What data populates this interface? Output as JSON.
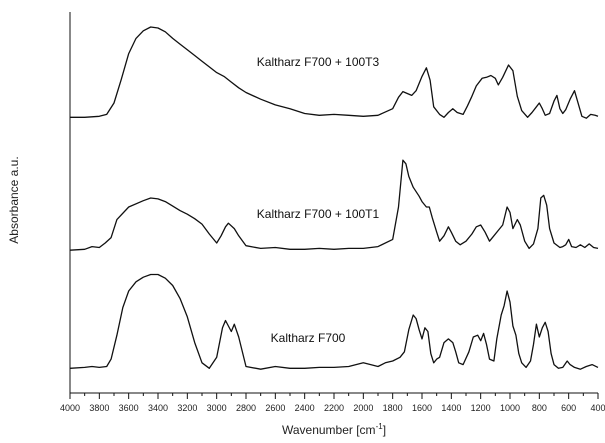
{
  "chart_data": {
    "type": "line",
    "xlabel": "Wavenumber [cm",
    "xlabel_sup": "-1",
    "xlabel_end": "]",
    "ylabel": "Absorbance a.u.",
    "xlim": [
      4000,
      400
    ],
    "x_reversed": true,
    "x_ticks": [
      4000,
      3800,
      3600,
      3400,
      3200,
      3000,
      2800,
      2600,
      2400,
      2200,
      2000,
      1800,
      1600,
      1400,
      1200,
      1000,
      800,
      600,
      400
    ],
    "grid": false,
    "legend": "none",
    "series": [
      {
        "name": "Kaltharz F700 + 100T3",
        "offset": 2,
        "points": [
          [
            4000,
            0.05
          ],
          [
            3900,
            0.05
          ],
          [
            3800,
            0.06
          ],
          [
            3750,
            0.08
          ],
          [
            3700,
            0.2
          ],
          [
            3650,
            0.45
          ],
          [
            3600,
            0.72
          ],
          [
            3550,
            0.88
          ],
          [
            3500,
            0.96
          ],
          [
            3450,
            1.0
          ],
          [
            3400,
            0.99
          ],
          [
            3350,
            0.95
          ],
          [
            3300,
            0.88
          ],
          [
            3250,
            0.82
          ],
          [
            3200,
            0.76
          ],
          [
            3150,
            0.7
          ],
          [
            3100,
            0.64
          ],
          [
            3050,
            0.58
          ],
          [
            3000,
            0.52
          ],
          [
            2950,
            0.48
          ],
          [
            2900,
            0.42
          ],
          [
            2850,
            0.36
          ],
          [
            2800,
            0.31
          ],
          [
            2700,
            0.24
          ],
          [
            2600,
            0.18
          ],
          [
            2500,
            0.14
          ],
          [
            2400,
            0.09
          ],
          [
            2300,
            0.07
          ],
          [
            2200,
            0.08
          ],
          [
            2100,
            0.07
          ],
          [
            2000,
            0.06
          ],
          [
            1900,
            0.07
          ],
          [
            1800,
            0.14
          ],
          [
            1760,
            0.26
          ],
          [
            1730,
            0.32
          ],
          [
            1700,
            0.3
          ],
          [
            1670,
            0.28
          ],
          [
            1640,
            0.33
          ],
          [
            1600,
            0.48
          ],
          [
            1570,
            0.57
          ],
          [
            1545,
            0.44
          ],
          [
            1520,
            0.16
          ],
          [
            1480,
            0.08
          ],
          [
            1450,
            0.05
          ],
          [
            1420,
            0.1
          ],
          [
            1390,
            0.14
          ],
          [
            1360,
            0.1
          ],
          [
            1320,
            0.08
          ],
          [
            1290,
            0.17
          ],
          [
            1260,
            0.27
          ],
          [
            1230,
            0.38
          ],
          [
            1190,
            0.46
          ],
          [
            1160,
            0.47
          ],
          [
            1130,
            0.49
          ],
          [
            1100,
            0.46
          ],
          [
            1080,
            0.39
          ],
          [
            1050,
            0.47
          ],
          [
            1010,
            0.6
          ],
          [
            980,
            0.54
          ],
          [
            950,
            0.27
          ],
          [
            920,
            0.12
          ],
          [
            880,
            0.05
          ],
          [
            850,
            0.1
          ],
          [
            820,
            0.16
          ],
          [
            800,
            0.2
          ],
          [
            780,
            0.14
          ],
          [
            760,
            0.07
          ],
          [
            730,
            0.09
          ],
          [
            700,
            0.22
          ],
          [
            680,
            0.28
          ],
          [
            660,
            0.14
          ],
          [
            640,
            0.09
          ],
          [
            620,
            0.13
          ],
          [
            590,
            0.24
          ],
          [
            560,
            0.33
          ],
          [
            540,
            0.22
          ],
          [
            510,
            0.06
          ],
          [
            480,
            0.04
          ],
          [
            450,
            0.08
          ],
          [
            420,
            0.07
          ],
          [
            400,
            0.06
          ]
        ]
      },
      {
        "name": "Kaltharz F700 + 100T1",
        "offset": 1,
        "points": [
          [
            4000,
            0.02
          ],
          [
            3900,
            0.03
          ],
          [
            3850,
            0.06
          ],
          [
            3800,
            0.05
          ],
          [
            3760,
            0.1
          ],
          [
            3720,
            0.16
          ],
          [
            3680,
            0.36
          ],
          [
            3600,
            0.5
          ],
          [
            3500,
            0.57
          ],
          [
            3450,
            0.6
          ],
          [
            3400,
            0.59
          ],
          [
            3350,
            0.56
          ],
          [
            3300,
            0.51
          ],
          [
            3250,
            0.46
          ],
          [
            3200,
            0.42
          ],
          [
            3150,
            0.37
          ],
          [
            3100,
            0.31
          ],
          [
            3050,
            0.2
          ],
          [
            3000,
            0.1
          ],
          [
            2970,
            0.18
          ],
          [
            2940,
            0.28
          ],
          [
            2920,
            0.32
          ],
          [
            2880,
            0.26
          ],
          [
            2850,
            0.18
          ],
          [
            2800,
            0.07
          ],
          [
            2700,
            0.04
          ],
          [
            2600,
            0.05
          ],
          [
            2500,
            0.03
          ],
          [
            2400,
            0.03
          ],
          [
            2300,
            0.04
          ],
          [
            2200,
            0.03
          ],
          [
            2100,
            0.04
          ],
          [
            2000,
            0.04
          ],
          [
            1900,
            0.06
          ],
          [
            1800,
            0.14
          ],
          [
            1760,
            0.5
          ],
          [
            1730,
            1.02
          ],
          [
            1710,
            0.98
          ],
          [
            1690,
            0.84
          ],
          [
            1660,
            0.72
          ],
          [
            1620,
            0.62
          ],
          [
            1600,
            0.56
          ],
          [
            1570,
            0.5
          ],
          [
            1550,
            0.5
          ],
          [
            1530,
            0.38
          ],
          [
            1500,
            0.22
          ],
          [
            1480,
            0.12
          ],
          [
            1450,
            0.18
          ],
          [
            1420,
            0.28
          ],
          [
            1400,
            0.22
          ],
          [
            1370,
            0.12
          ],
          [
            1340,
            0.08
          ],
          [
            1300,
            0.12
          ],
          [
            1260,
            0.2
          ],
          [
            1230,
            0.28
          ],
          [
            1200,
            0.3
          ],
          [
            1170,
            0.22
          ],
          [
            1140,
            0.12
          ],
          [
            1110,
            0.18
          ],
          [
            1080,
            0.24
          ],
          [
            1050,
            0.3
          ],
          [
            1020,
            0.5
          ],
          [
            1000,
            0.44
          ],
          [
            980,
            0.26
          ],
          [
            950,
            0.36
          ],
          [
            930,
            0.3
          ],
          [
            900,
            0.12
          ],
          [
            870,
            0.04
          ],
          [
            840,
            0.09
          ],
          [
            810,
            0.26
          ],
          [
            790,
            0.6
          ],
          [
            770,
            0.63
          ],
          [
            750,
            0.52
          ],
          [
            730,
            0.26
          ],
          [
            700,
            0.1
          ],
          [
            660,
            0.05
          ],
          [
            640,
            0.06
          ],
          [
            620,
            0.08
          ],
          [
            600,
            0.14
          ],
          [
            580,
            0.06
          ],
          [
            550,
            0.05
          ],
          [
            520,
            0.08
          ],
          [
            490,
            0.05
          ],
          [
            460,
            0.09
          ],
          [
            430,
            0.05
          ],
          [
            400,
            0.04
          ]
        ]
      },
      {
        "name": "Kaltharz F700",
        "offset": 0,
        "points": [
          [
            4000,
            0.04
          ],
          [
            3900,
            0.05
          ],
          [
            3850,
            0.06
          ],
          [
            3800,
            0.05
          ],
          [
            3750,
            0.06
          ],
          [
            3720,
            0.14
          ],
          [
            3680,
            0.4
          ],
          [
            3640,
            0.7
          ],
          [
            3600,
            0.88
          ],
          [
            3550,
            0.98
          ],
          [
            3500,
            1.03
          ],
          [
            3450,
            1.06
          ],
          [
            3400,
            1.06
          ],
          [
            3350,
            1.02
          ],
          [
            3300,
            0.94
          ],
          [
            3250,
            0.8
          ],
          [
            3200,
            0.6
          ],
          [
            3150,
            0.32
          ],
          [
            3100,
            0.1
          ],
          [
            3050,
            0.04
          ],
          [
            3000,
            0.16
          ],
          [
            2960,
            0.48
          ],
          [
            2940,
            0.56
          ],
          [
            2920,
            0.5
          ],
          [
            2900,
            0.44
          ],
          [
            2880,
            0.52
          ],
          [
            2850,
            0.38
          ],
          [
            2800,
            0.06
          ],
          [
            2700,
            0.03
          ],
          [
            2600,
            0.06
          ],
          [
            2500,
            0.04
          ],
          [
            2400,
            0.04
          ],
          [
            2300,
            0.05
          ],
          [
            2200,
            0.05
          ],
          [
            2100,
            0.06
          ],
          [
            2000,
            0.1
          ],
          [
            1950,
            0.08
          ],
          [
            1900,
            0.06
          ],
          [
            1850,
            0.1
          ],
          [
            1800,
            0.12
          ],
          [
            1750,
            0.16
          ],
          [
            1720,
            0.22
          ],
          [
            1690,
            0.46
          ],
          [
            1660,
            0.62
          ],
          [
            1640,
            0.58
          ],
          [
            1620,
            0.46
          ],
          [
            1600,
            0.36
          ],
          [
            1580,
            0.48
          ],
          [
            1560,
            0.44
          ],
          [
            1540,
            0.2
          ],
          [
            1520,
            0.1
          ],
          [
            1500,
            0.14
          ],
          [
            1480,
            0.16
          ],
          [
            1450,
            0.32
          ],
          [
            1420,
            0.36
          ],
          [
            1390,
            0.32
          ],
          [
            1370,
            0.22
          ],
          [
            1350,
            0.1
          ],
          [
            1320,
            0.08
          ],
          [
            1280,
            0.22
          ],
          [
            1250,
            0.38
          ],
          [
            1220,
            0.4
          ],
          [
            1200,
            0.34
          ],
          [
            1180,
            0.42
          ],
          [
            1160,
            0.3
          ],
          [
            1140,
            0.14
          ],
          [
            1110,
            0.12
          ],
          [
            1090,
            0.36
          ],
          [
            1060,
            0.62
          ],
          [
            1040,
            0.72
          ],
          [
            1020,
            0.88
          ],
          [
            1000,
            0.76
          ],
          [
            980,
            0.5
          ],
          [
            960,
            0.4
          ],
          [
            940,
            0.2
          ],
          [
            920,
            0.1
          ],
          [
            890,
            0.05
          ],
          [
            860,
            0.12
          ],
          [
            840,
            0.3
          ],
          [
            820,
            0.52
          ],
          [
            800,
            0.38
          ],
          [
            780,
            0.48
          ],
          [
            760,
            0.54
          ],
          [
            740,
            0.44
          ],
          [
            720,
            0.2
          ],
          [
            700,
            0.08
          ],
          [
            670,
            0.04
          ],
          [
            640,
            0.05
          ],
          [
            610,
            0.12
          ],
          [
            590,
            0.08
          ],
          [
            560,
            0.05
          ],
          [
            520,
            0.03
          ],
          [
            480,
            0.06
          ],
          [
            440,
            0.08
          ],
          [
            400,
            0.05
          ]
        ]
      }
    ]
  }
}
